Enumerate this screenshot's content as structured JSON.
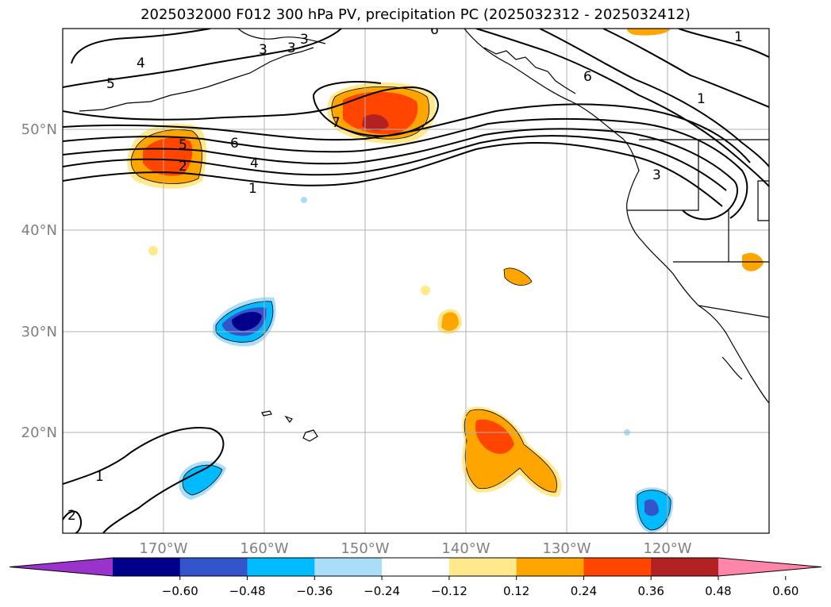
{
  "title": "2025032000 F012 300 hPa PV, precipitation PC (2025032312 - 2025032412)",
  "map": {
    "lon_range": [
      -180,
      -110
    ],
    "lat_range": [
      10,
      60
    ],
    "lat_ticks": [
      {
        "value": 50,
        "label": "50°N"
      },
      {
        "value": 40,
        "label": "40°N"
      },
      {
        "value": 30,
        "label": "30°N"
      },
      {
        "value": 20,
        "label": "20°N"
      }
    ],
    "lon_ticks": [
      {
        "value": -170,
        "label": "170°W"
      },
      {
        "value": -160,
        "label": "160°W"
      },
      {
        "value": -150,
        "label": "150°W"
      },
      {
        "value": -140,
        "label": "140°W"
      },
      {
        "value": -130,
        "label": "130°W"
      },
      {
        "value": -120,
        "label": "120°W"
      }
    ],
    "grid": true
  },
  "colorbar": {
    "colors": [
      "#9933cc",
      "#00008b",
      "#3355cc",
      "#00bbff",
      "#aaddf8",
      "#ffffff",
      "#ffe98c",
      "#ffa500",
      "#ff4500",
      "#b22222",
      "#ff85aa"
    ],
    "labels": [
      "−0.60",
      "−0.48",
      "−0.36",
      "−0.24",
      "−0.12",
      "0.12",
      "0.24",
      "0.36",
      "0.48",
      "0.60"
    ]
  },
  "pv_labels": [
    "4",
    "5",
    "3",
    "3",
    "3",
    "6",
    "6",
    "5",
    "2",
    "6",
    "4",
    "1",
    "7",
    "1",
    "3",
    "1",
    "1",
    "2"
  ]
}
